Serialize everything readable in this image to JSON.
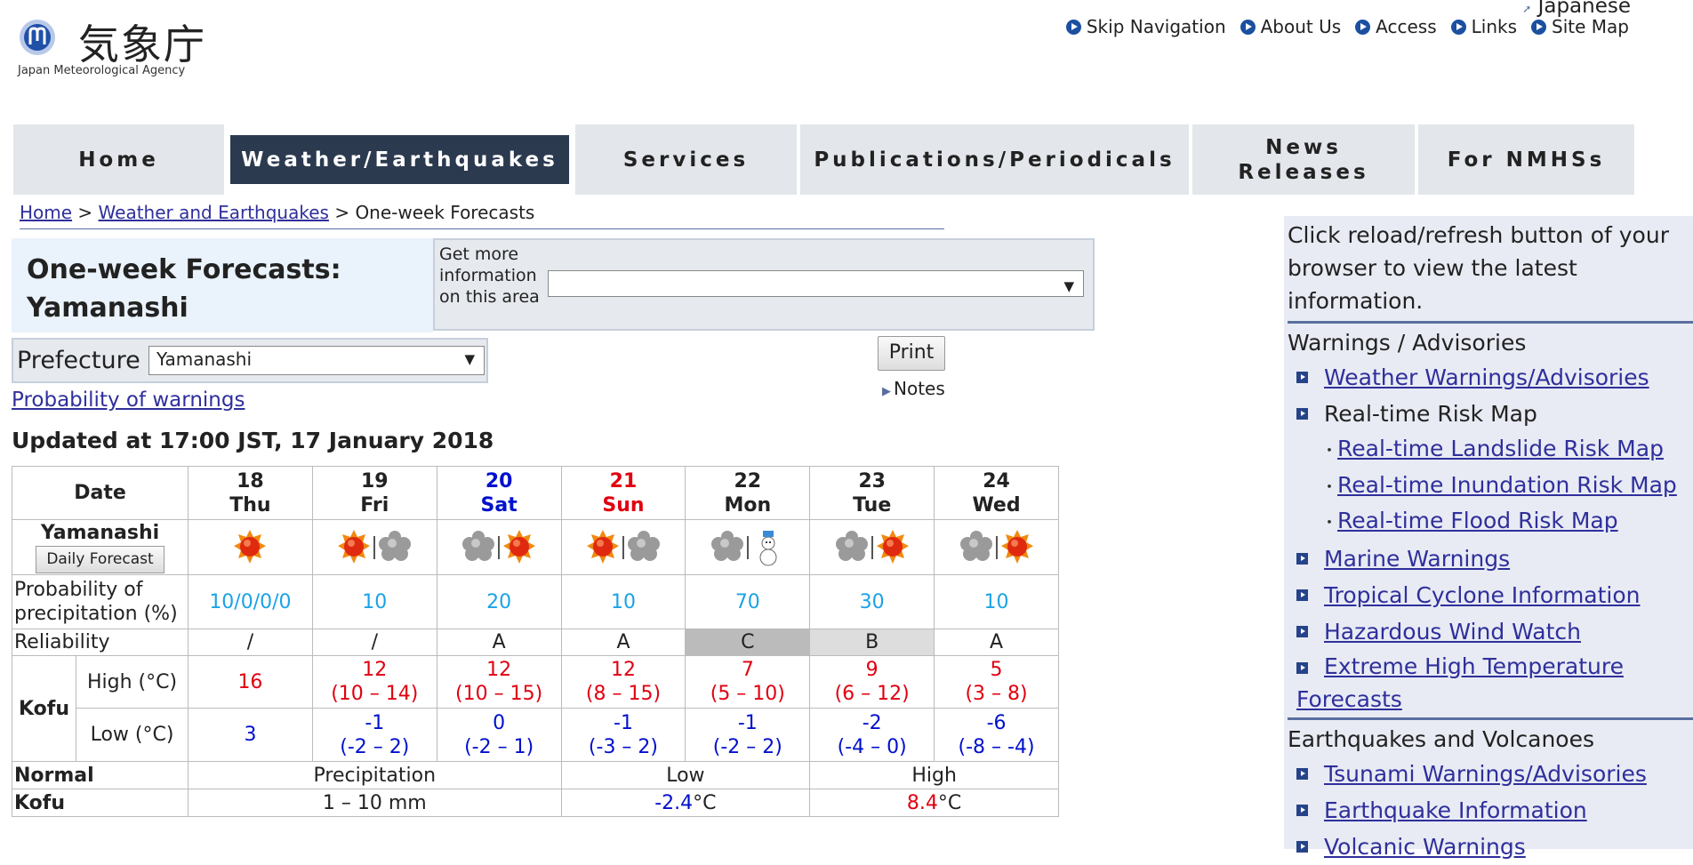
{
  "header": {
    "logo_kanji": "気象庁",
    "logo_en": "Japan Meteorological Agency",
    "language_link": "Japanese",
    "links": [
      "Skip Navigation",
      "About Us",
      "Access",
      "Links",
      "Site Map"
    ]
  },
  "nav": {
    "tabs": [
      "Home",
      "Weather/Earthquakes",
      "Services",
      "Publications/Periodicals",
      "News Releases",
      "For NMHSs"
    ],
    "active": "Weather/Earthquakes"
  },
  "breadcrumb": {
    "items": [
      "Home",
      "Weather and Earthquakes"
    ],
    "current": "One-week Forecasts",
    "separator": ">"
  },
  "title": {
    "line1": "One-week Forecasts:",
    "line2": "Yamanashi"
  },
  "more_info": {
    "label": "Get more information on this area",
    "value": ""
  },
  "prefecture": {
    "label": "Prefecture",
    "value": "Yamanashi"
  },
  "print_label": "Print",
  "notes_label": "Notes",
  "probability_link": "Probability of warnings",
  "updated": "Updated at 17:00 JST, 17 January 2018",
  "forecast": {
    "date_header": "Date",
    "region": "Yamanashi",
    "daily_button": "Daily Forecast",
    "days": [
      {
        "date": "18",
        "dow": "Thu",
        "type": "weekday",
        "icons": [
          "sun"
        ],
        "pop": "10/0/0/0",
        "rel": "/",
        "high": "16",
        "high_range": "",
        "low": "3",
        "low_range": ""
      },
      {
        "date": "19",
        "dow": "Fri",
        "type": "weekday",
        "icons": [
          "sun",
          "cloud"
        ],
        "pop": "10",
        "rel": "/",
        "high": "12",
        "high_range": "(10 – 14)",
        "low": "-1",
        "low_range": "(-2 – 2)"
      },
      {
        "date": "20",
        "dow": "Sat",
        "type": "sat",
        "icons": [
          "cloud",
          "sun"
        ],
        "pop": "20",
        "rel": "A",
        "high": "12",
        "high_range": "(10 – 15)",
        "low": "0",
        "low_range": "(-2 – 1)"
      },
      {
        "date": "21",
        "dow": "Sun",
        "type": "sun",
        "icons": [
          "sun",
          "cloud"
        ],
        "pop": "10",
        "rel": "A",
        "high": "12",
        "high_range": "(8 – 15)",
        "low": "-1",
        "low_range": "(-3 – 2)"
      },
      {
        "date": "22",
        "dow": "Mon",
        "type": "weekday",
        "icons": [
          "cloud",
          "snow"
        ],
        "pop": "70",
        "rel": "C",
        "high": "7",
        "high_range": "(5 – 10)",
        "low": "-1",
        "low_range": "(-2 – 2)"
      },
      {
        "date": "23",
        "dow": "Tue",
        "type": "weekday",
        "icons": [
          "cloud",
          "sun"
        ],
        "pop": "30",
        "rel": "B",
        "high": "9",
        "high_range": "(6 – 12)",
        "low": "-2",
        "low_range": "(-4 – 0)"
      },
      {
        "date": "24",
        "dow": "Wed",
        "type": "weekday",
        "icons": [
          "cloud",
          "sun"
        ],
        "pop": "10",
        "rel": "A",
        "high": "5",
        "high_range": "(3 – 8)",
        "low": "-6",
        "low_range": "(-8 – -4)"
      }
    ],
    "pop_label": "Probability of precipitation (%)",
    "rel_label": "Reliability",
    "city": "Kofu",
    "high_label": "High (°C)",
    "low_label": "Low (°C)",
    "reliability_colors": {
      "C": "#bbbbbb",
      "B": "#dddddd"
    },
    "normal": {
      "label": "Normal",
      "city": "Kofu",
      "precip_label": "Precipitation",
      "low_label": "Low",
      "high_label": "High",
      "precip": "1 – 10 mm",
      "low": "-2.4",
      "high": "8.4",
      "unit": "°C"
    }
  },
  "sidebar": {
    "info": "Click reload/refresh button of your browser to view the latest information.",
    "warnings_heading": "Warnings / Advisories",
    "weather_warnings": "Weather Warnings/Advisories",
    "risk_map": "Real-time Risk Map",
    "risk_subs": [
      "Real-time Landslide Risk Map",
      "Real-time Inundation Risk Map",
      "Real-time Flood Risk Map"
    ],
    "links1": [
      "Marine Warnings",
      "Tropical Cyclone Information",
      "Hazardous Wind Watch",
      "Extreme High Temperature Forecasts"
    ],
    "eq_heading": "Earthquakes and Volcanoes",
    "links2": [
      "Tsunami Warnings/Advisories",
      "Earthquake Information",
      "Volcanic Warnings"
    ]
  },
  "colors": {
    "nav_active": "#2c3a4f",
    "link": "#2f2f9c",
    "high": "#e00010",
    "low": "#0010cc",
    "pop": "#1ba3e6"
  }
}
